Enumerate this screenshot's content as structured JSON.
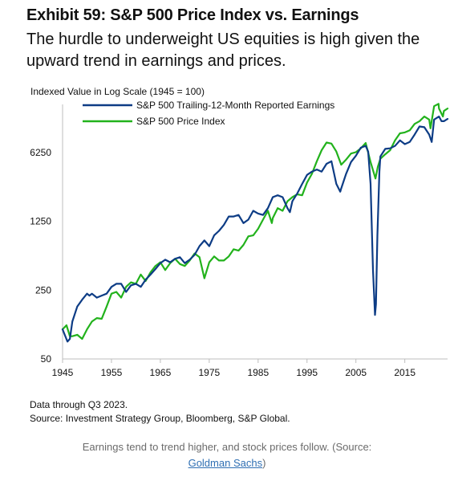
{
  "header": {
    "exhibit_title": "Exhibit 59: S&P 500 Price Index vs. Earnings",
    "subtitle": "The hurdle to underweight US equities is high given the upward trend in earnings and prices."
  },
  "notes": {
    "data_through": "Data through Q3 2023.",
    "source": "Source: Investment Strategy Group, Bloomberg, S&P Global."
  },
  "caption": {
    "text_before": "Earnings tend to trend higher, and stock prices follow. (Source: ",
    "link_text": "Goldman Sachs",
    "text_after": ")"
  },
  "colors": {
    "earnings": "#0d3c85",
    "price": "#22b21c",
    "axis": "#bdbdbd"
  },
  "chart_data": {
    "type": "line",
    "ylabel": "Indexed Value in Log Scale (1945 = 100)",
    "y_scale": "log",
    "ylim": [
      50,
      20000
    ],
    "xlim": [
      1945,
      2023.75
    ],
    "y_ticks": [
      50,
      250,
      1250,
      6250
    ],
    "x_ticks": [
      1945,
      1955,
      1965,
      1975,
      1985,
      1995,
      2005,
      2015
    ],
    "legend_position": "top-left",
    "series": [
      {
        "name": "S&P 500 Trailing-12-Month Reported Earnings",
        "color": "#0d3c85",
        "points": [
          [
            1945,
            100
          ],
          [
            1946,
            75
          ],
          [
            1946.5,
            80
          ],
          [
            1947,
            120
          ],
          [
            1948,
            170
          ],
          [
            1949,
            200
          ],
          [
            1950,
            230
          ],
          [
            1950.5,
            220
          ],
          [
            1951,
            230
          ],
          [
            1952,
            210
          ],
          [
            1953,
            220
          ],
          [
            1954,
            230
          ],
          [
            1955,
            270
          ],
          [
            1956,
            290
          ],
          [
            1957,
            290
          ],
          [
            1958,
            240
          ],
          [
            1959,
            280
          ],
          [
            1960,
            290
          ],
          [
            1961,
            270
          ],
          [
            1962,
            320
          ],
          [
            1963,
            360
          ],
          [
            1964,
            410
          ],
          [
            1965,
            470
          ],
          [
            1966,
            510
          ],
          [
            1967,
            480
          ],
          [
            1968,
            520
          ],
          [
            1969,
            540
          ],
          [
            1970,
            470
          ],
          [
            1971,
            510
          ],
          [
            1972,
            570
          ],
          [
            1973,
            700
          ],
          [
            1974,
            800
          ],
          [
            1975,
            700
          ],
          [
            1976,
            900
          ],
          [
            1977,
            1000
          ],
          [
            1978,
            1150
          ],
          [
            1979,
            1400
          ],
          [
            1980,
            1400
          ],
          [
            1981,
            1450
          ],
          [
            1982,
            1200
          ],
          [
            1983,
            1300
          ],
          [
            1984,
            1600
          ],
          [
            1985,
            1500
          ],
          [
            1986,
            1450
          ],
          [
            1987,
            1700
          ],
          [
            1988,
            2200
          ],
          [
            1989,
            2300
          ],
          [
            1990,
            2200
          ],
          [
            1991,
            1700
          ],
          [
            1991.5,
            1550
          ],
          [
            1992,
            2000
          ],
          [
            1993,
            2400
          ],
          [
            1994,
            3000
          ],
          [
            1995,
            3700
          ],
          [
            1996,
            4000
          ],
          [
            1997,
            4200
          ],
          [
            1998,
            4000
          ],
          [
            1999,
            4800
          ],
          [
            2000,
            5100
          ],
          [
            2001,
            3000
          ],
          [
            2001.8,
            2500
          ],
          [
            2002,
            2700
          ],
          [
            2003,
            3800
          ],
          [
            2004,
            5000
          ],
          [
            2005,
            5800
          ],
          [
            2006,
            7000
          ],
          [
            2007,
            7300
          ],
          [
            2007.5,
            6400
          ],
          [
            2008,
            3000
          ],
          [
            2008.5,
            400
          ],
          [
            2008.9,
            140
          ],
          [
            2009.1,
            180
          ],
          [
            2009.4,
            900
          ],
          [
            2009.8,
            4000
          ],
          [
            2010,
            5700
          ],
          [
            2011,
            6800
          ],
          [
            2012,
            6900
          ],
          [
            2013,
            7300
          ],
          [
            2014,
            8300
          ],
          [
            2015,
            7600
          ],
          [
            2016,
            8000
          ],
          [
            2017,
            9500
          ],
          [
            2018,
            11500
          ],
          [
            2019,
            11300
          ],
          [
            2020,
            9500
          ],
          [
            2020.5,
            8000
          ],
          [
            2021,
            13500
          ],
          [
            2022,
            14500
          ],
          [
            2022.5,
            13000
          ],
          [
            2023,
            13000
          ],
          [
            2023.75,
            13700
          ]
        ]
      },
      {
        "name": "S&P 500 Price Index",
        "color": "#22b21c",
        "points": [
          [
            1945,
            100
          ],
          [
            1945.8,
            110
          ],
          [
            1946.5,
            85
          ],
          [
            1947,
            85
          ],
          [
            1948,
            88
          ],
          [
            1949,
            80
          ],
          [
            1950,
            100
          ],
          [
            1951,
            120
          ],
          [
            1952,
            130
          ],
          [
            1953,
            128
          ],
          [
            1954,
            170
          ],
          [
            1955,
            230
          ],
          [
            1956,
            240
          ],
          [
            1957,
            210
          ],
          [
            1958,
            270
          ],
          [
            1959,
            300
          ],
          [
            1960,
            290
          ],
          [
            1961,
            360
          ],
          [
            1962,
            310
          ],
          [
            1963,
            380
          ],
          [
            1964,
            440
          ],
          [
            1965,
            480
          ],
          [
            1966,
            400
          ],
          [
            1967,
            470
          ],
          [
            1968,
            520
          ],
          [
            1969,
            460
          ],
          [
            1970,
            440
          ],
          [
            1971,
            500
          ],
          [
            1972,
            590
          ],
          [
            1973,
            540
          ],
          [
            1974,
            330
          ],
          [
            1975,
            480
          ],
          [
            1976,
            550
          ],
          [
            1977,
            500
          ],
          [
            1978,
            500
          ],
          [
            1979,
            550
          ],
          [
            1980,
            650
          ],
          [
            1981,
            630
          ],
          [
            1982,
            720
          ],
          [
            1983,
            880
          ],
          [
            1984,
            900
          ],
          [
            1985,
            1050
          ],
          [
            1986,
            1300
          ],
          [
            1987,
            1600
          ],
          [
            1987.8,
            1200
          ],
          [
            1988,
            1350
          ],
          [
            1989,
            1700
          ],
          [
            1990,
            1600
          ],
          [
            1991,
            2000
          ],
          [
            1992,
            2200
          ],
          [
            1993,
            2350
          ],
          [
            1994,
            2300
          ],
          [
            1995,
            3100
          ],
          [
            1996,
            3800
          ],
          [
            1997,
            5100
          ],
          [
            1998,
            6600
          ],
          [
            1999,
            7900
          ],
          [
            2000,
            7700
          ],
          [
            2001,
            6400
          ],
          [
            2002,
            4700
          ],
          [
            2003,
            5300
          ],
          [
            2004,
            6100
          ],
          [
            2005,
            6300
          ],
          [
            2006,
            6900
          ],
          [
            2007,
            7800
          ],
          [
            2008,
            5000
          ],
          [
            2009,
            3400
          ],
          [
            2009.5,
            4500
          ],
          [
            2010,
            5400
          ],
          [
            2011,
            6000
          ],
          [
            2012,
            6600
          ],
          [
            2013,
            8300
          ],
          [
            2014,
            9800
          ],
          [
            2015,
            10000
          ],
          [
            2016,
            10500
          ],
          [
            2017,
            12200
          ],
          [
            2018,
            13000
          ],
          [
            2019,
            14500
          ],
          [
            2020,
            13500
          ],
          [
            2020.25,
            11000
          ],
          [
            2021,
            18500
          ],
          [
            2021.9,
            19500
          ],
          [
            2022,
            17500
          ],
          [
            2022.8,
            14500
          ],
          [
            2023,
            16500
          ],
          [
            2023.75,
            17500
          ]
        ]
      }
    ]
  }
}
